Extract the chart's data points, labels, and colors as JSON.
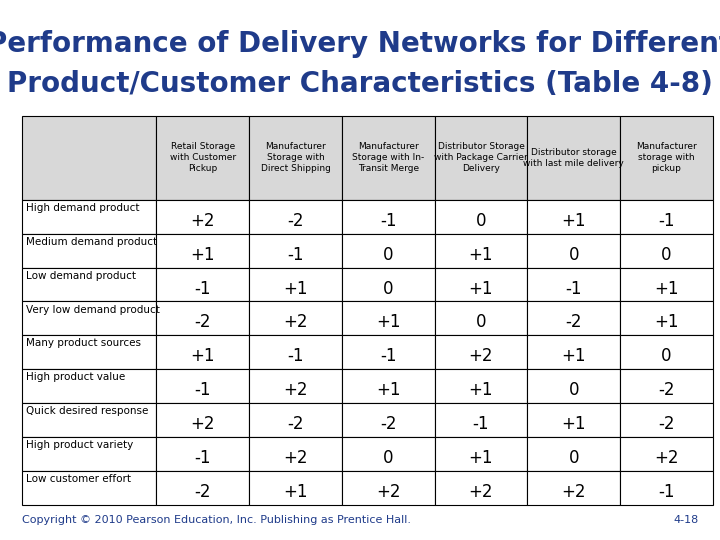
{
  "title_line1": "Performance of Delivery Networks for Different",
  "title_line2": "Product/Customer Characteristics (Table 4-8)",
  "title_color": "#1F3B8A",
  "title_fontsize": 20,
  "background_color": "#FFFFFF",
  "teal_line_color": "#3A7A6A",
  "col_headers": [
    "Retail Storage\nwith Customer\nPickup",
    "Manufacturer\nStorage with\nDirect Shipping",
    "Manufacturer\nStorage with In-\nTransit Merge",
    "Distributor Storage\nwith Package Carrier\nDelivery",
    "Distributor storage\nwith last mile delivery",
    "Manufacturer\nstorage with\npickup"
  ],
  "row_labels": [
    "High demand product",
    "Medium demand product",
    "Low demand product",
    "Very low demand product",
    "Many product sources",
    "High product value",
    "Quick desired response",
    "High product variety",
    "Low customer effort"
  ],
  "table_data": [
    [
      "+2",
      "-2",
      "-1",
      "0",
      "+1",
      "-1"
    ],
    [
      "+1",
      "-1",
      "0",
      "+1",
      "0",
      "0"
    ],
    [
      "-1",
      "+1",
      "0",
      "+1",
      "-1",
      "+1"
    ],
    [
      "-2",
      "+2",
      "+1",
      "0",
      "-2",
      "+1"
    ],
    [
      "+1",
      "-1",
      "-1",
      "+2",
      "+1",
      "0"
    ],
    [
      "-1",
      "+2",
      "+1",
      "+1",
      "0",
      "-2"
    ],
    [
      "+2",
      "-2",
      "-2",
      "-1",
      "+1",
      "-2"
    ],
    [
      "-1",
      "+2",
      "0",
      "+1",
      "0",
      "+2"
    ],
    [
      "-2",
      "+1",
      "+2",
      "+2",
      "+2",
      "-1"
    ]
  ],
  "header_bg": "#D8D8D8",
  "cell_bg": "#FFFFFF",
  "border_color": "#000000",
  "copyright_text": "Copyright © 2010 Pearson Education, Inc. Publishing as Prentice Hall.",
  "page_number": "4-18",
  "row_label_fontsize": 7.5,
  "header_fontsize": 6.5,
  "cell_fontsize": 12,
  "copyright_fontsize": 8,
  "title_font": "DejaVu Sans"
}
